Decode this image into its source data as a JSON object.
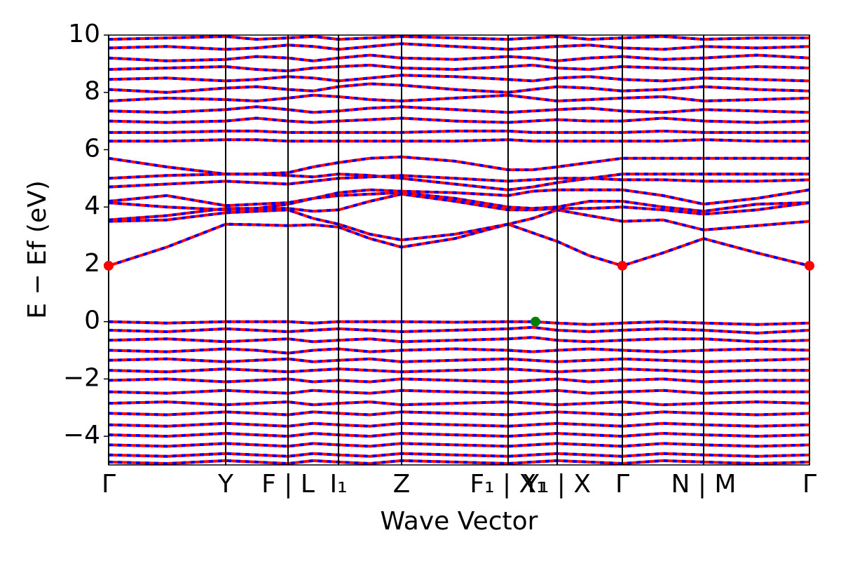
{
  "chart_data": {
    "type": "line",
    "xlabel": "Wave Vector",
    "ylabel": "E − Ef (eV)",
    "xlim": [
      0,
      1000
    ],
    "ylim": [
      -5,
      10
    ],
    "xticks": [
      {
        "value": 0,
        "label": "Γ"
      },
      {
        "value": 167,
        "label": "Y"
      },
      {
        "value": 256,
        "label": "F | L"
      },
      {
        "value": 328,
        "label": "I₁"
      },
      {
        "value": 418,
        "label": "Z"
      },
      {
        "value": 570,
        "label": "F₁ | X₁"
      },
      {
        "value": 640,
        "label": "Y₁ | X"
      },
      {
        "value": 733,
        "label": "Γ"
      },
      {
        "value": 849,
        "label": "N | M"
      },
      {
        "value": 1000,
        "label": "Γ"
      }
    ],
    "yticks": [
      {
        "value": -4,
        "label": "−4"
      },
      {
        "value": -2,
        "label": "−2"
      },
      0,
      2,
      4,
      6,
      8,
      10
    ],
    "dash_color": "#0000ff",
    "x": [
      0,
      83,
      167,
      211,
      256,
      292,
      328,
      373,
      418,
      494,
      570,
      605,
      640,
      686,
      733,
      791,
      849,
      925,
      1000
    ],
    "series": [
      {
        "color": "#ff0000",
        "values": [
          1.95,
          2.6,
          3.4,
          3.38,
          3.35,
          3.38,
          3.3,
          2.9,
          2.6,
          2.9,
          3.4,
          3.1,
          2.8,
          2.3,
          1.95,
          2.4,
          2.9,
          2.4,
          1.95
        ]
      },
      {
        "color": "#ff0000",
        "values": [
          3.5,
          3.55,
          3.8,
          3.85,
          3.9,
          3.6,
          3.4,
          3.05,
          2.85,
          3.05,
          3.4,
          3.6,
          3.9,
          3.7,
          3.5,
          3.55,
          3.2,
          3.35,
          3.5
        ]
      },
      {
        "color": "#ff0000",
        "values": [
          3.55,
          3.7,
          3.95,
          3.95,
          3.95,
          3.85,
          3.9,
          4.2,
          4.45,
          4.2,
          3.9,
          3.9,
          3.95,
          3.95,
          4.0,
          3.9,
          3.75,
          3.9,
          4.15
        ]
      },
      {
        "color": "#ff0000",
        "values": [
          4.15,
          4.0,
          3.9,
          3.95,
          4.1,
          4.3,
          4.4,
          4.45,
          4.5,
          4.3,
          4.0,
          3.95,
          4.0,
          4.2,
          4.2,
          4.0,
          3.85,
          4.1,
          4.15
        ]
      },
      {
        "color": "#ff0000",
        "values": [
          4.2,
          4.4,
          4.05,
          4.1,
          4.15,
          4.3,
          4.5,
          4.6,
          4.55,
          4.5,
          4.4,
          4.55,
          4.6,
          4.6,
          4.6,
          4.4,
          4.1,
          4.3,
          4.6
        ]
      },
      {
        "color": "#ff0000",
        "values": [
          4.7,
          4.8,
          4.9,
          4.85,
          4.8,
          4.9,
          5.0,
          5.05,
          5.1,
          5.0,
          4.9,
          4.95,
          5.0,
          5.0,
          4.95,
          4.95,
          4.9,
          4.9,
          4.95
        ]
      },
      {
        "color": "#ff0000",
        "values": [
          5.0,
          5.1,
          5.15,
          5.15,
          5.1,
          5.05,
          5.15,
          5.1,
          5.0,
          4.8,
          4.6,
          4.7,
          4.85,
          5.0,
          5.15,
          5.15,
          5.15,
          5.15,
          5.15
        ]
      },
      {
        "color": "#ff0000",
        "values": [
          5.7,
          5.4,
          5.15,
          5.15,
          5.2,
          5.4,
          5.55,
          5.7,
          5.75,
          5.6,
          5.3,
          5.3,
          5.4,
          5.55,
          5.7,
          5.7,
          5.7,
          5.7,
          5.7
        ]
      },
      {
        "color": "#ff0000",
        "values": [
          6.3,
          6.3,
          6.35,
          6.35,
          6.3,
          6.3,
          6.3,
          6.3,
          6.3,
          6.3,
          6.35,
          6.3,
          6.3,
          6.3,
          6.3,
          6.3,
          6.35,
          6.3,
          6.3
        ]
      },
      {
        "color": "#ff0000",
        "values": [
          6.6,
          6.6,
          6.65,
          6.65,
          6.6,
          6.6,
          6.6,
          6.6,
          6.6,
          6.65,
          6.65,
          6.6,
          6.6,
          6.6,
          6.6,
          6.65,
          6.6,
          6.6,
          6.6
        ]
      },
      {
        "color": "#ff0000",
        "values": [
          7.0,
          6.95,
          7.0,
          7.1,
          7.0,
          6.95,
          7.0,
          7.05,
          7.1,
          7.0,
          6.95,
          7.0,
          7.05,
          7.0,
          7.0,
          7.1,
          7.0,
          6.95,
          7.0
        ]
      },
      {
        "color": "#ff0000",
        "values": [
          7.35,
          7.3,
          7.4,
          7.5,
          7.4,
          7.3,
          7.35,
          7.45,
          7.5,
          7.4,
          7.3,
          7.35,
          7.4,
          7.45,
          7.35,
          7.3,
          7.4,
          7.35,
          7.3
        ]
      },
      {
        "color": "#ff0000",
        "values": [
          7.7,
          7.8,
          7.75,
          7.7,
          7.8,
          7.9,
          7.85,
          7.75,
          7.7,
          7.8,
          7.9,
          7.8,
          7.7,
          7.75,
          7.8,
          7.85,
          7.7,
          7.75,
          7.8
        ]
      },
      {
        "color": "#ff0000",
        "values": [
          8.1,
          8.0,
          8.15,
          8.2,
          8.1,
          8.05,
          8.2,
          8.3,
          8.25,
          8.1,
          8.0,
          8.1,
          8.2,
          8.15,
          8.05,
          8.1,
          8.2,
          8.1,
          8.05
        ]
      },
      {
        "color": "#ff0000",
        "values": [
          8.45,
          8.5,
          8.4,
          8.45,
          8.55,
          8.5,
          8.4,
          8.5,
          8.6,
          8.55,
          8.45,
          8.4,
          8.5,
          8.55,
          8.45,
          8.4,
          8.5,
          8.45,
          8.4
        ]
      },
      {
        "color": "#ff0000",
        "values": [
          8.8,
          8.85,
          8.9,
          8.8,
          8.75,
          8.85,
          8.9,
          8.95,
          8.85,
          8.8,
          8.9,
          8.95,
          8.85,
          8.8,
          8.9,
          8.85,
          8.8,
          8.9,
          8.85
        ]
      },
      {
        "color": "#ff0000",
        "values": [
          9.2,
          9.1,
          9.15,
          9.25,
          9.2,
          9.1,
          9.2,
          9.3,
          9.2,
          9.15,
          9.25,
          9.2,
          9.1,
          9.2,
          9.25,
          9.15,
          9.2,
          9.3,
          9.2
        ]
      },
      {
        "color": "#ff0000",
        "values": [
          9.55,
          9.6,
          9.5,
          9.55,
          9.65,
          9.6,
          9.5,
          9.6,
          9.7,
          9.6,
          9.5,
          9.55,
          9.6,
          9.65,
          9.55,
          9.5,
          9.6,
          9.55,
          9.6
        ]
      },
      {
        "color": "#ff0000",
        "values": [
          9.85,
          9.9,
          9.95,
          9.85,
          9.9,
          9.95,
          9.85,
          9.9,
          9.95,
          9.9,
          9.85,
          9.9,
          9.95,
          9.85,
          9.9,
          9.95,
          9.85,
          9.9,
          9.9
        ]
      },
      {
        "color": "#ff0000",
        "values": [
          0,
          -0.05,
          0,
          0,
          0,
          -0.05,
          0,
          0,
          0,
          -0.02,
          0,
          0,
          -0.05,
          -0.1,
          -0.05,
          0,
          -0.05,
          -0.1,
          -0.05
        ]
      },
      {
        "color": "#ff0000",
        "values": [
          -0.3,
          -0.35,
          -0.25,
          -0.3,
          -0.35,
          -0.3,
          -0.25,
          -0.3,
          -0.35,
          -0.3,
          -0.25,
          -0.2,
          -0.3,
          -0.35,
          -0.3,
          -0.25,
          -0.3,
          -0.4,
          -0.3
        ]
      },
      {
        "color": "#ff0000",
        "values": [
          -0.65,
          -0.6,
          -0.7,
          -0.65,
          -0.6,
          -0.7,
          -0.65,
          -0.6,
          -0.7,
          -0.65,
          -0.6,
          -0.55,
          -0.65,
          -0.7,
          -0.65,
          -0.6,
          -0.6,
          -0.7,
          -0.65
        ]
      },
      {
        "color": "#ff0000",
        "values": [
          -1.0,
          -1.05,
          -0.95,
          -1.0,
          -1.1,
          -1.0,
          -0.95,
          -1.05,
          -1.0,
          -0.95,
          -1.0,
          -1.05,
          -1.0,
          -0.95,
          -1.0,
          -1.05,
          -1.0,
          -0.95,
          -1.0
        ]
      },
      {
        "color": "#ff0000",
        "values": [
          -1.35,
          -1.3,
          -1.4,
          -1.35,
          -1.3,
          -1.4,
          -1.35,
          -1.3,
          -1.4,
          -1.35,
          -1.3,
          -1.35,
          -1.4,
          -1.35,
          -1.3,
          -1.35,
          -1.4,
          -1.35,
          -1.3
        ]
      },
      {
        "color": "#ff0000",
        "values": [
          -1.7,
          -1.75,
          -1.65,
          -1.7,
          -1.75,
          -1.7,
          -1.65,
          -1.7,
          -1.75,
          -1.7,
          -1.65,
          -1.7,
          -1.75,
          -1.7,
          -1.65,
          -1.7,
          -1.75,
          -1.7,
          -1.7
        ]
      },
      {
        "color": "#ff0000",
        "values": [
          -2.05,
          -2.0,
          -2.1,
          -2.05,
          -2.0,
          -2.1,
          -2.05,
          -2.1,
          -2.0,
          -2.05,
          -2.1,
          -2.05,
          -2.0,
          -2.1,
          -2.05,
          -2.0,
          -2.1,
          -2.05,
          -2.05
        ]
      },
      {
        "color": "#ff0000",
        "values": [
          -2.45,
          -2.5,
          -2.4,
          -2.45,
          -2.5,
          -2.4,
          -2.45,
          -2.5,
          -2.4,
          -2.45,
          -2.5,
          -2.45,
          -2.4,
          -2.5,
          -2.45,
          -2.4,
          -2.5,
          -2.45,
          -2.45
        ]
      },
      {
        "color": "#ff0000",
        "values": [
          -2.85,
          -2.8,
          -2.9,
          -2.85,
          -2.8,
          -2.9,
          -2.85,
          -2.8,
          -2.9,
          -2.85,
          -2.8,
          -2.85,
          -2.9,
          -2.85,
          -2.8,
          -2.9,
          -2.85,
          -2.8,
          -2.85
        ]
      },
      {
        "color": "#ff0000",
        "values": [
          -3.2,
          -3.25,
          -3.15,
          -3.2,
          -3.25,
          -3.15,
          -3.2,
          -3.25,
          -3.15,
          -3.2,
          -3.25,
          -3.2,
          -3.15,
          -3.2,
          -3.25,
          -3.15,
          -3.2,
          -3.25,
          -3.2
        ]
      },
      {
        "color": "#ff0000",
        "values": [
          -3.6,
          -3.65,
          -3.55,
          -3.6,
          -3.65,
          -3.55,
          -3.6,
          -3.65,
          -3.55,
          -3.6,
          -3.65,
          -3.6,
          -3.55,
          -3.6,
          -3.65,
          -3.55,
          -3.6,
          -3.65,
          -3.6
        ]
      },
      {
        "color": "#ff0000",
        "values": [
          -3.95,
          -4.0,
          -3.9,
          -3.95,
          -4.0,
          -3.9,
          -3.95,
          -4.0,
          -3.9,
          -3.95,
          -4.0,
          -3.95,
          -3.9,
          -3.95,
          -4.0,
          -3.9,
          -3.95,
          -4.0,
          -3.95
        ]
      },
      {
        "color": "#ff0000",
        "values": [
          -4.3,
          -4.35,
          -4.25,
          -4.3,
          -4.35,
          -4.25,
          -4.3,
          -4.35,
          -4.25,
          -4.3,
          -4.35,
          -4.3,
          -4.25,
          -4.3,
          -4.35,
          -4.25,
          -4.3,
          -4.35,
          -4.3
        ]
      },
      {
        "color": "#ff0000",
        "values": [
          -4.65,
          -4.7,
          -4.6,
          -4.65,
          -4.7,
          -4.6,
          -4.65,
          -4.7,
          -4.6,
          -4.65,
          -4.7,
          -4.65,
          -4.6,
          -4.65,
          -4.7,
          -4.6,
          -4.65,
          -4.7,
          -4.65
        ]
      },
      {
        "color": "#ff0000",
        "values": [
          -4.9,
          -4.95,
          -4.85,
          -4.9,
          -4.95,
          -4.85,
          -4.9,
          -4.95,
          -4.85,
          -4.9,
          -4.95,
          -4.9,
          -4.85,
          -4.9,
          -4.95,
          -4.85,
          -4.9,
          -4.95,
          -4.9
        ]
      }
    ],
    "points": [
      {
        "color": "#ff0000",
        "x": [
          0,
          733,
          1000
        ],
        "y": [
          1.95,
          1.95,
          1.95
        ]
      },
      {
        "color": "#008000",
        "x": [
          609
        ],
        "y": [
          0
        ]
      }
    ]
  }
}
